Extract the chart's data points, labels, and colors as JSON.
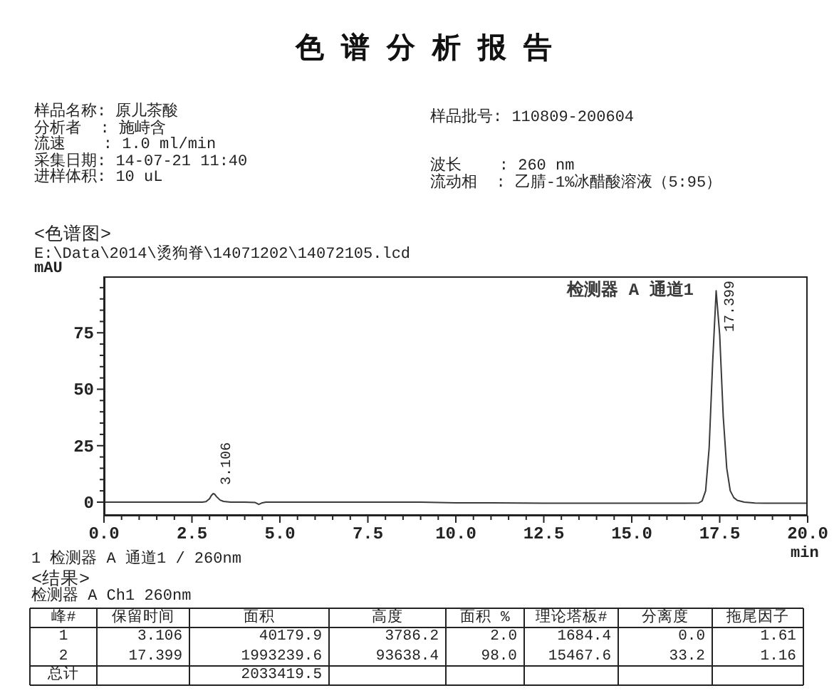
{
  "chart_data": {
    "type": "line",
    "title": "色谱分析报告",
    "xlabel": "min",
    "ylabel": "mAU",
    "x": [
      0,
      1,
      2,
      2.5,
      2.8,
      2.9,
      3.0,
      3.05,
      3.106,
      3.15,
      3.2,
      3.3,
      3.4,
      3.6,
      4.0,
      4.3,
      4.4,
      4.5,
      4.6,
      5,
      6,
      7.5,
      9,
      10,
      11,
      12.5,
      14,
      15,
      16,
      16.5,
      16.9,
      17.0,
      17.1,
      17.2,
      17.3,
      17.399,
      17.5,
      17.6,
      17.7,
      17.8,
      17.9,
      18.0,
      18.2,
      18.5,
      18.8,
      19,
      20
    ],
    "series": [
      {
        "name": "检测器 A 通道1",
        "color": "#3a3a3a",
        "values": [
          0,
          0,
          0,
          0,
          0,
          0.2,
          1.5,
          2.9,
          3.8,
          3.4,
          2.4,
          0.9,
          0.3,
          0,
          0,
          -0.2,
          -1,
          -0.3,
          0,
          0,
          0,
          0,
          0,
          -0.3,
          -0.3,
          -0.5,
          -0.5,
          -0.5,
          -0.5,
          -0.5,
          -0.4,
          0.5,
          5,
          24,
          62,
          93.6,
          74,
          38,
          15,
          5,
          2,
          0.8,
          0,
          -0.4,
          -0.5,
          -0.5,
          -0.5
        ]
      }
    ],
    "xlim": [
      0,
      20
    ],
    "ylim": [
      -6,
      100
    ],
    "xticks": [
      {
        "value": 0,
        "label": "0.0"
      },
      {
        "value": 0.5,
        "label": null
      },
      {
        "value": 1,
        "label": null
      },
      {
        "value": 1.5,
        "label": null
      },
      {
        "value": 2,
        "label": null
      },
      2.5,
      {
        "value": 3,
        "label": null
      },
      {
        "value": 3.5,
        "label": null
      },
      {
        "value": 4,
        "label": null
      },
      {
        "value": 4.5,
        "label": null
      },
      {
        "value": 5,
        "label": "5.0"
      },
      {
        "value": 5.5,
        "label": null
      },
      {
        "value": 6,
        "label": null
      },
      {
        "value": 6.5,
        "label": null
      },
      {
        "value": 7,
        "label": null
      },
      7.5,
      {
        "value": 8,
        "label": null
      },
      {
        "value": 8.5,
        "label": null
      },
      {
        "value": 9,
        "label": null
      },
      {
        "value": 9.5,
        "label": null
      },
      {
        "value": 10,
        "label": "10.0"
      },
      {
        "value": 10.5,
        "label": null
      },
      {
        "value": 11,
        "label": null
      },
      {
        "value": 11.5,
        "label": null
      },
      {
        "value": 12,
        "label": null
      },
      12.5,
      {
        "value": 13,
        "label": null
      },
      {
        "value": 13.5,
        "label": null
      },
      {
        "value": 14,
        "label": null
      },
      {
        "value": 14.5,
        "label": null
      },
      {
        "value": 15,
        "label": "15.0"
      },
      {
        "value": 15.5,
        "label": null
      },
      {
        "value": 16,
        "label": null
      },
      {
        "value": 16.5,
        "label": null
      },
      {
        "value": 17,
        "label": null
      },
      17.5,
      {
        "value": 18,
        "label": null
      },
      {
        "value": 18.5,
        "label": null
      },
      {
        "value": 19,
        "label": null
      },
      {
        "value": 19.5,
        "label": null
      },
      {
        "value": 20,
        "label": "20.0"
      }
    ],
    "yticks": [
      0,
      {
        "value": 5,
        "label": null
      },
      {
        "value": 10,
        "label": null
      },
      {
        "value": 15,
        "label": null
      },
      {
        "value": 20,
        "label": null
      },
      25,
      {
        "value": 30,
        "label": null
      },
      {
        "value": 35,
        "label": null
      },
      {
        "value": 40,
        "label": null
      },
      {
        "value": 45,
        "label": null
      },
      50,
      {
        "value": 55,
        "label": null
      },
      {
        "value": 60,
        "label": null
      },
      {
        "value": 65,
        "label": null
      },
      {
        "value": 70,
        "label": null
      },
      75,
      {
        "value": 80,
        "label": null
      },
      {
        "value": 85,
        "label": null
      },
      {
        "value": 90,
        "label": null
      },
      {
        "value": 95,
        "label": null
      }
    ],
    "legend": "top right",
    "annotations": [
      "样品名称: 原儿茶酸",
      "分析者  : 施峙含",
      "流速    : 1.0 ml/min",
      "采集日期: 14-07-21 11:40",
      "进样体积: 10 uL",
      "样品批号: 110809-200604",
      "波长    : 260 nm",
      "流动相  : 乙腈-1%冰醋酸溶液（5:95）",
      "<色谱图>",
      "E:\\Data\\2014\\烫狗脊\\14071202\\14072105.lcd",
      "1 检测器 A 通道1 / 260nm",
      "<结果>",
      "检测器 A Ch1 260nm",
      "峰#",
      "保留时间",
      "面积",
      "高度",
      "面积 %",
      "理论塔板#",
      "分离度",
      "拖尾因子",
      "1",
      "3.106",
      "40179.9",
      "3786.2",
      "2.0",
      "1684.4",
      "0.0",
      "1.61",
      "2",
      "17.399",
      "1993239.6",
      "93638.4",
      "98.0",
      "15467.6",
      "33.2",
      "1.16",
      "总计",
      "2033419.5",
      {
        "text": "3.106",
        "x": 3.106,
        "y": 3.8
      },
      {
        "text": "17.399",
        "x": 17.399,
        "y": 93.6
      }
    ]
  }
}
